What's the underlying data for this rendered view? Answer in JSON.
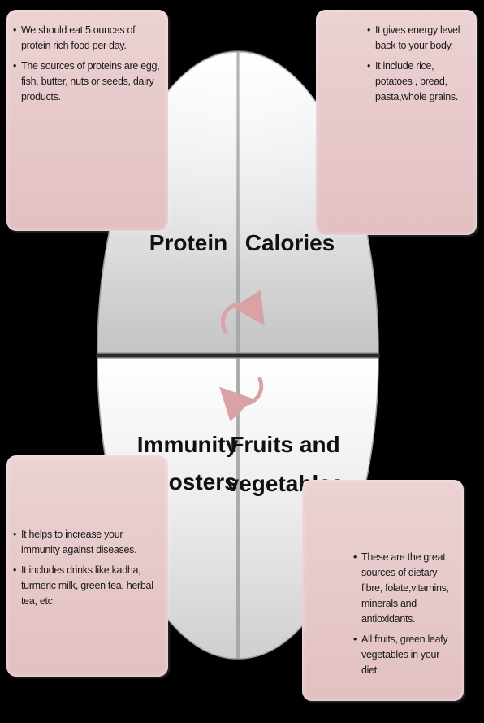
{
  "quadrants": {
    "protein": {
      "title": "Protein"
    },
    "calories": {
      "title": "Calories"
    },
    "immunity": {
      "line1": "Immunity",
      "line2": "Boosters"
    },
    "fruits": {
      "line1": "Fruits and",
      "line2": "vegetables"
    }
  },
  "boxes": {
    "protein": [
      "We should eat 5 ounces of protein rich food per day.",
      "The sources of proteins are egg, fish, butter, nuts or seeds, dairy products."
    ],
    "calories": [
      "It gives energy level back to your body.",
      "It include rice, potatoes , bread, pasta,whole grains."
    ],
    "immunity": [
      "It helps to  increase your immunity against diseases.",
      "It includes drinks like kadha, turmeric milk, green tea, herbal tea, etc."
    ],
    "fruits": [
      "These are the great sources of dietary fibre, folate,vitamins, minerals and antioxidants.",
      "All fruits, green leafy vegetables in your diet."
    ]
  },
  "colors": {
    "box_fill": "#e6c6c8",
    "arrow": "#d9a3a6",
    "background": "#000000"
  }
}
